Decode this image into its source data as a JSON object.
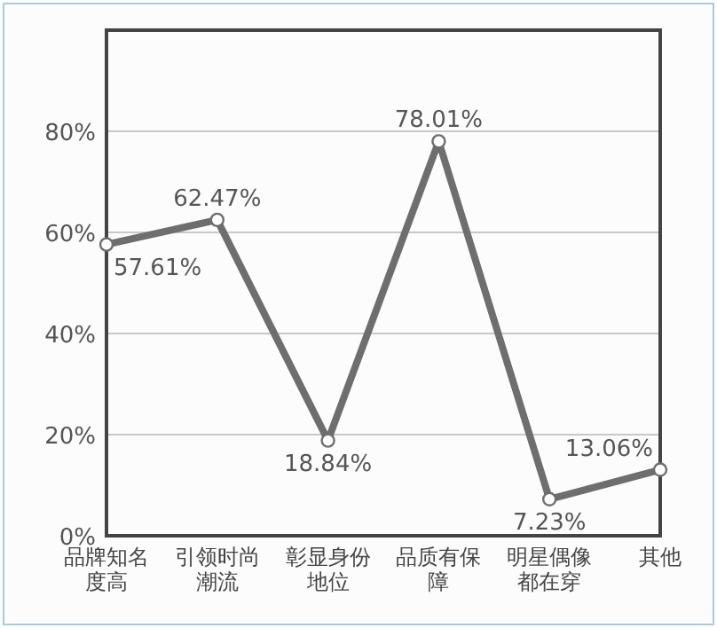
{
  "chart_data": {
    "type": "line",
    "categories": [
      "品牌知名度高",
      "引领时尚潮流",
      "彰显身份地位",
      "品质有保障",
      "明星偶像都在穿",
      "其他"
    ],
    "series": [
      {
        "color": "#6e6e6e",
        "values": [
          57.61,
          62.47,
          18.84,
          78.01,
          7.23,
          13.06
        ],
        "value_labels": [
          "57.61%",
          "62.47%",
          "18.84%",
          "78.01%",
          "7.23%",
          "13.06%"
        ]
      }
    ],
    "ylim": [
      0,
      100
    ],
    "yticks": [
      {
        "value": 0,
        "label": "0%"
      },
      {
        "value": 20,
        "label": "20%"
      },
      {
        "value": 40,
        "label": "40%"
      },
      {
        "value": 60,
        "label": "60%"
      },
      {
        "value": 80,
        "label": "80%"
      }
    ],
    "grid": "y",
    "marker": "circle",
    "line_style": "solid"
  }
}
